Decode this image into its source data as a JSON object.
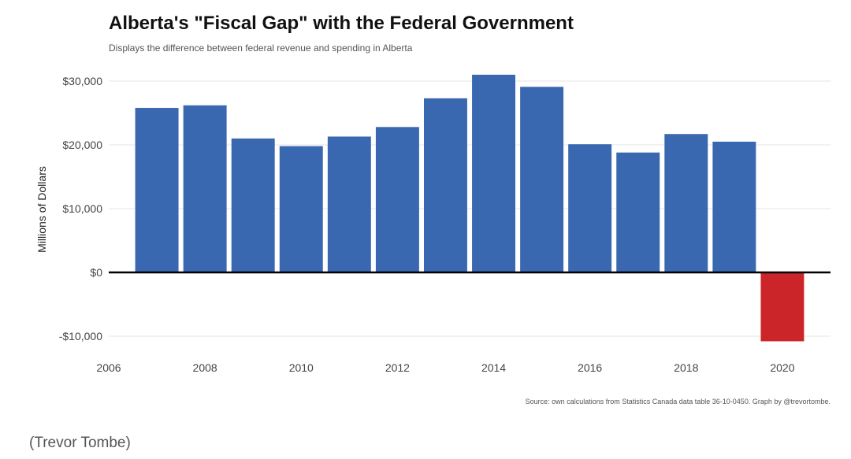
{
  "title": "Alberta's \"Fiscal Gap\" with the Federal Government",
  "subtitle": "Displays the difference between federal revenue and spending in Alberta",
  "source": "Source: own calculations from Statistics Canada data table 36-10-0450. Graph by @trevortombe.",
  "caption": "(Trevor Tombe)",
  "colors": {
    "positive": "#3a68b0",
    "negative": "#cc2529",
    "grid": "#e6e6e6",
    "zero_line": "#000000"
  },
  "chart_data": {
    "type": "bar",
    "title": "Alberta's \"Fiscal Gap\" with the Federal Government",
    "subtitle": "Displays the difference between federal revenue and spending in Alberta",
    "xlabel": "",
    "ylabel": "Millions of Dollars",
    "x": [
      2007,
      2008,
      2009,
      2010,
      2011,
      2012,
      2013,
      2014,
      2015,
      2016,
      2017,
      2018,
      2019,
      2020
    ],
    "values": [
      25800,
      26200,
      21000,
      19800,
      21300,
      22800,
      27300,
      31000,
      29100,
      20100,
      18800,
      21700,
      20500,
      -10800
    ],
    "xlim": [
      2006,
      2021
    ],
    "ylim": [
      -12000,
      32500
    ],
    "xticks": [
      2006,
      2008,
      2010,
      2012,
      2014,
      2016,
      2018,
      2020
    ],
    "xtick_labels": [
      "2006",
      "2008",
      "2010",
      "2012",
      "2014",
      "2016",
      "2018",
      "2020"
    ],
    "yticks": [
      -10000,
      0,
      10000,
      20000,
      30000
    ],
    "ytick_labels": [
      "-$10,000",
      "$0",
      "$10,000",
      "$20,000",
      "$30,000"
    ],
    "grid": true,
    "legend": "none"
  }
}
